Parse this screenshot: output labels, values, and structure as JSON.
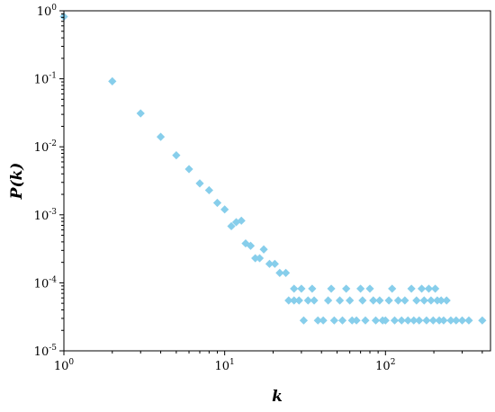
{
  "chart_data": {
    "type": "scatter",
    "title": "",
    "xlabel": "k",
    "ylabel": "P(k)",
    "xscale": "log",
    "yscale": "log",
    "xlim": [
      1,
      450
    ],
    "ylim": [
      1e-05,
      1
    ],
    "grid": false,
    "marker": "diamond",
    "marker_color": "#87ceeb",
    "x_ticks": [
      {
        "value": 1,
        "base": "10",
        "exp": "0"
      },
      {
        "value": 10,
        "base": "10",
        "exp": "1"
      },
      {
        "value": 100,
        "base": "10",
        "exp": "2"
      }
    ],
    "y_ticks": [
      {
        "value": 1e-05,
        "base": "10",
        "exp": "-5"
      },
      {
        "value": 0.0001,
        "base": "10",
        "exp": "-4"
      },
      {
        "value": 0.001,
        "base": "10",
        "exp": "-3"
      },
      {
        "value": 0.01,
        "base": "10",
        "exp": "-2"
      },
      {
        "value": 0.1,
        "base": "10",
        "exp": "-1"
      },
      {
        "value": 1,
        "base": "10",
        "exp": "0"
      }
    ],
    "points": [
      [
        1,
        0.82
      ],
      [
        2,
        0.092
      ],
      [
        3,
        0.031
      ],
      [
        4,
        0.014
      ],
      [
        5,
        0.0075
      ],
      [
        6,
        0.0047
      ],
      [
        7,
        0.0029
      ],
      [
        8,
        0.0023
      ],
      [
        9,
        0.0015
      ],
      [
        10,
        0.0012
      ],
      [
        11,
        0.00068
      ],
      [
        11.8,
        0.00078
      ],
      [
        12.7,
        0.00082
      ],
      [
        13.5,
        0.00038
      ],
      [
        14.5,
        0.00035
      ],
      [
        15.5,
        0.00023
      ],
      [
        16.5,
        0.00023
      ],
      [
        17.5,
        0.00031
      ],
      [
        19,
        0.00019
      ],
      [
        20.5,
        0.00019
      ],
      [
        22,
        0.00014
      ],
      [
        24,
        0.00014
      ],
      [
        25,
        5.5e-05
      ],
      [
        27,
        5.5e-05
      ],
      [
        27,
        8.2e-05
      ],
      [
        29,
        5.5e-05
      ],
      [
        30,
        8.2e-05
      ],
      [
        31,
        2.8e-05
      ],
      [
        33,
        5.5e-05
      ],
      [
        35,
        8.2e-05
      ],
      [
        36,
        5.5e-05
      ],
      [
        38,
        2.8e-05
      ],
      [
        41,
        2.8e-05
      ],
      [
        44,
        5.5e-05
      ],
      [
        46,
        8.2e-05
      ],
      [
        48,
        2.8e-05
      ],
      [
        52,
        5.5e-05
      ],
      [
        54,
        2.8e-05
      ],
      [
        57,
        8.2e-05
      ],
      [
        60,
        5.5e-05
      ],
      [
        62,
        2.8e-05
      ],
      [
        66,
        2.8e-05
      ],
      [
        70,
        8.2e-05
      ],
      [
        72,
        5.5e-05
      ],
      [
        75,
        2.8e-05
      ],
      [
        80,
        8.2e-05
      ],
      [
        84,
        5.5e-05
      ],
      [
        87,
        2.8e-05
      ],
      [
        92,
        5.5e-05
      ],
      [
        96,
        2.8e-05
      ],
      [
        100,
        2.8e-05
      ],
      [
        105,
        5.5e-05
      ],
      [
        110,
        8.2e-05
      ],
      [
        114,
        2.8e-05
      ],
      [
        120,
        5.5e-05
      ],
      [
        126,
        2.8e-05
      ],
      [
        132,
        5.5e-05
      ],
      [
        138,
        2.8e-05
      ],
      [
        145,
        8.2e-05
      ],
      [
        150,
        2.8e-05
      ],
      [
        156,
        5.5e-05
      ],
      [
        162,
        2.8e-05
      ],
      [
        168,
        8.2e-05
      ],
      [
        174,
        5.5e-05
      ],
      [
        180,
        2.8e-05
      ],
      [
        186,
        8.2e-05
      ],
      [
        192,
        5.5e-05
      ],
      [
        198,
        2.8e-05
      ],
      [
        204,
        8.2e-05
      ],
      [
        210,
        5.5e-05
      ],
      [
        216,
        2.8e-05
      ],
      [
        222,
        5.5e-05
      ],
      [
        230,
        2.8e-05
      ],
      [
        240,
        5.5e-05
      ],
      [
        255,
        2.8e-05
      ],
      [
        275,
        2.8e-05
      ],
      [
        300,
        2.8e-05
      ],
      [
        330,
        2.8e-05
      ],
      [
        400,
        2.8e-05
      ]
    ]
  }
}
